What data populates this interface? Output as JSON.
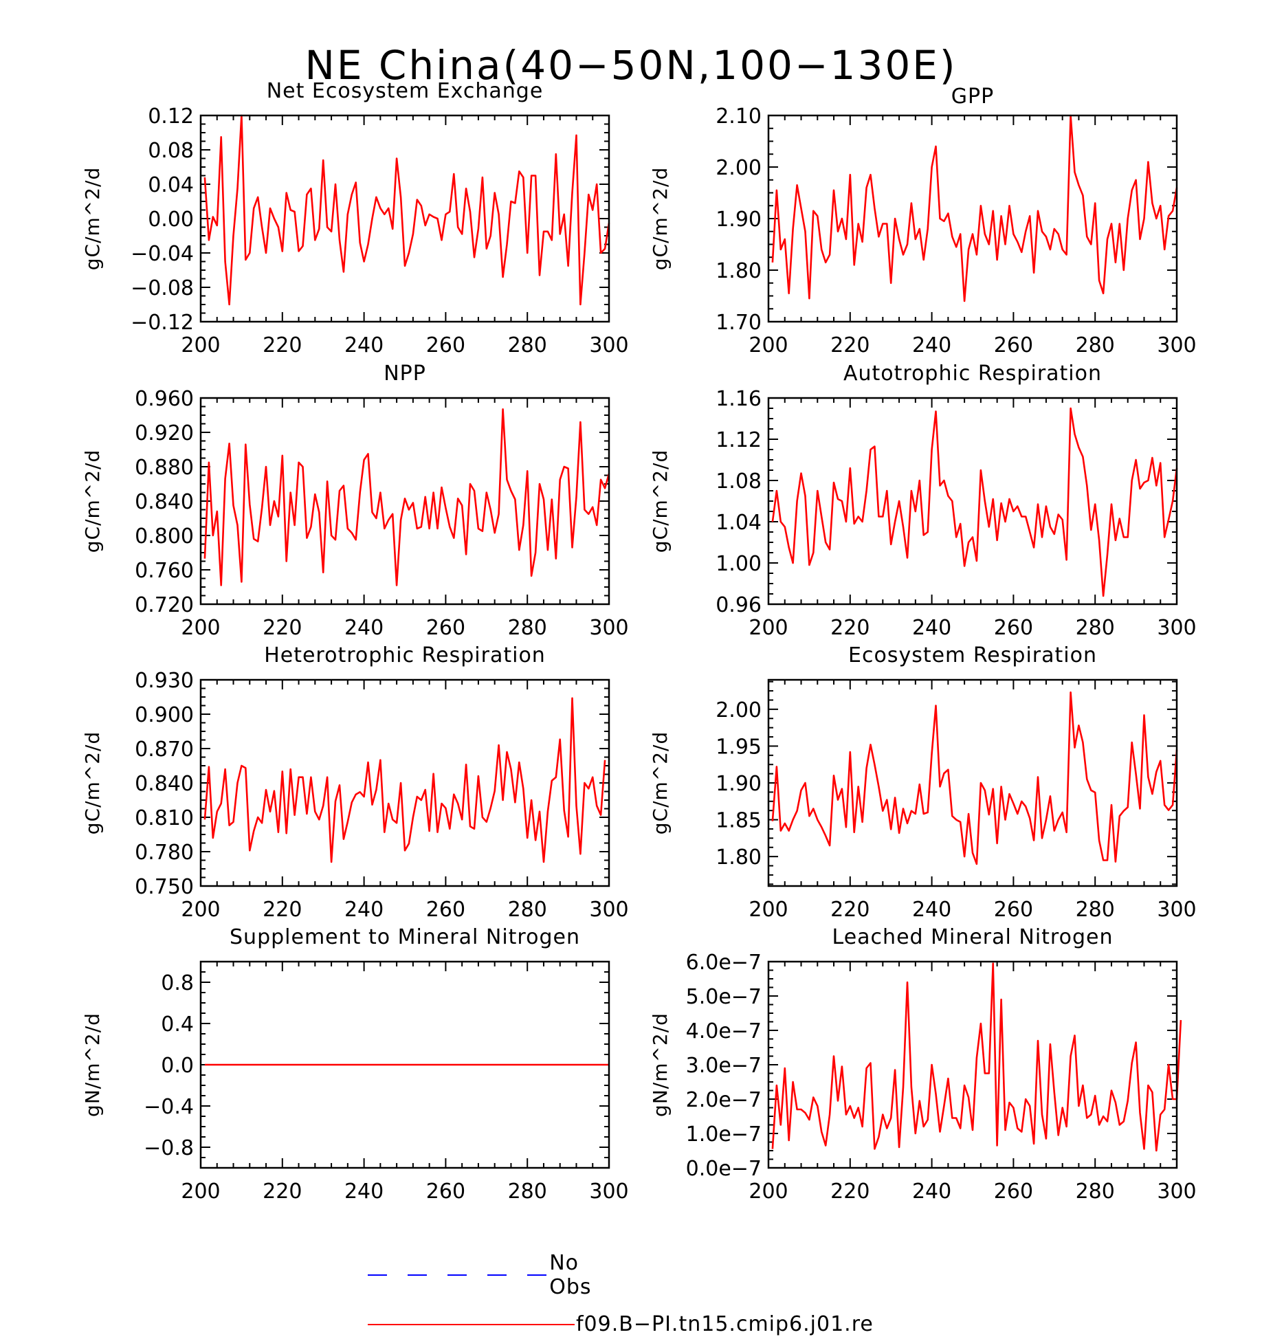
{
  "title": "NE China(40−50N,100−130E)",
  "colors": {
    "model": "#ff0000",
    "obs": "#0000ff"
  },
  "legend": [
    {
      "label": "No Obs",
      "color": "#0000ff",
      "style": "dashed"
    },
    {
      "label": "f09.B−PI.tn15.cmip6.j01.re",
      "color": "#ff0000",
      "style": "solid"
    }
  ],
  "chart_data": [
    {
      "type": "line",
      "title": "Net Ecosystem Exchange",
      "ylabel": "gC/m^2/d",
      "xlabel": "",
      "xlim": [
        200,
        300
      ],
      "xticks": [
        200,
        220,
        240,
        260,
        280,
        300
      ],
      "ylim": [
        -0.12,
        0.12
      ],
      "yticks": [
        -0.12,
        -0.08,
        -0.04,
        0.0,
        0.04,
        0.08,
        0.12
      ],
      "yticklabels": [
        "−0.12",
        "−0.08",
        "−0.04",
        "0.00",
        "0.04",
        "0.08",
        "0.12"
      ],
      "x_start": 201,
      "series": [
        {
          "name": "f09.B−PI.tn15.cmip6.j01.re",
          "values": [
            0.048,
            -0.025,
            0.002,
            -0.008,
            0.095,
            -0.05,
            -0.1,
            -0.02,
            0.035,
            0.12,
            -0.048,
            -0.04,
            0.012,
            0.025,
            -0.01,
            -0.04,
            0.012,
            0.0,
            -0.01,
            -0.038,
            0.03,
            0.01,
            0.008,
            -0.038,
            -0.032,
            0.028,
            0.035,
            -0.025,
            -0.012,
            0.068,
            -0.01,
            -0.015,
            0.04,
            -0.025,
            -0.062,
            0.005,
            0.028,
            0.042,
            -0.028,
            -0.05,
            -0.03,
            0.0,
            0.025,
            0.012,
            0.005,
            0.012,
            -0.012,
            0.07,
            0.025,
            -0.055,
            -0.04,
            -0.018,
            0.022,
            0.015,
            -0.008,
            0.005,
            0.002,
            0.0,
            -0.025,
            0.005,
            0.008,
            0.052,
            -0.01,
            -0.018,
            0.035,
            0.008,
            -0.045,
            -0.012,
            0.048,
            -0.035,
            -0.02,
            0.03,
            0.005,
            -0.068,
            -0.03,
            0.02,
            0.018,
            0.055,
            0.048,
            -0.04,
            0.05,
            0.05,
            -0.066,
            -0.015,
            -0.015,
            -0.025,
            0.075,
            -0.018,
            0.005,
            -0.055,
            0.03,
            0.097,
            -0.1,
            -0.04,
            0.028,
            0.01,
            0.04,
            -0.04,
            -0.035,
            -0.005
          ]
        }
      ]
    },
    {
      "type": "line",
      "title": "GPP",
      "ylabel": "gC/m^2/d",
      "xlabel": "",
      "xlim": [
        200,
        300
      ],
      "xticks": [
        200,
        220,
        240,
        260,
        280,
        300
      ],
      "ylim": [
        1.7,
        2.1
      ],
      "yticks": [
        1.7,
        1.8,
        1.9,
        2.0,
        2.1
      ],
      "yticklabels": [
        "1.70",
        "1.80",
        "1.90",
        "2.00",
        "2.10"
      ],
      "x_start": 201,
      "series": [
        {
          "name": "f09.B−PI.tn15.cmip6.j01.re",
          "values": [
            1.815,
            1.955,
            1.84,
            1.86,
            1.755,
            1.88,
            1.965,
            1.92,
            1.875,
            1.745,
            1.915,
            1.905,
            1.84,
            1.815,
            1.83,
            1.955,
            1.875,
            1.9,
            1.86,
            1.985,
            1.81,
            1.89,
            1.855,
            1.96,
            1.985,
            1.92,
            1.865,
            1.89,
            1.89,
            1.775,
            1.9,
            1.86,
            1.83,
            1.85,
            1.93,
            1.86,
            1.88,
            1.82,
            1.88,
            2.0,
            2.04,
            1.9,
            1.895,
            1.91,
            1.865,
            1.845,
            1.87,
            1.74,
            1.84,
            1.87,
            1.83,
            1.925,
            1.87,
            1.85,
            1.915,
            1.82,
            1.905,
            1.85,
            1.925,
            1.87,
            1.855,
            1.835,
            1.875,
            1.905,
            1.795,
            1.915,
            1.875,
            1.865,
            1.84,
            1.88,
            1.87,
            1.84,
            1.83,
            2.1,
            1.99,
            1.965,
            1.945,
            1.865,
            1.85,
            1.93,
            1.78,
            1.755,
            1.86,
            1.89,
            1.815,
            1.89,
            1.8,
            1.9,
            1.955,
            1.975,
            1.86,
            1.9,
            2.01,
            1.93,
            1.9,
            1.925,
            1.84,
            1.905,
            1.915,
            1.96
          ]
        }
      ]
    },
    {
      "type": "line",
      "title": "NPP",
      "ylabel": "gC/m^2/d",
      "xlabel": "",
      "xlim": [
        200,
        300
      ],
      "xticks": [
        200,
        220,
        240,
        260,
        280,
        300
      ],
      "ylim": [
        0.72,
        0.96
      ],
      "yticks": [
        0.72,
        0.76,
        0.8,
        0.84,
        0.88,
        0.92,
        0.96
      ],
      "yticklabels": [
        "0.720",
        "0.760",
        "0.800",
        "0.840",
        "0.880",
        "0.920",
        "0.960"
      ],
      "x_start": 201,
      "series": [
        {
          "name": "f09.B−PI.tn15.cmip6.j01.re",
          "values": [
            0.773,
            0.885,
            0.8,
            0.828,
            0.742,
            0.866,
            0.907,
            0.835,
            0.812,
            0.746,
            0.906,
            0.836,
            0.796,
            0.793,
            0.832,
            0.88,
            0.812,
            0.84,
            0.822,
            0.893,
            0.77,
            0.85,
            0.812,
            0.885,
            0.88,
            0.797,
            0.81,
            0.848,
            0.827,
            0.757,
            0.863,
            0.8,
            0.795,
            0.852,
            0.858,
            0.808,
            0.803,
            0.795,
            0.85,
            0.888,
            0.895,
            0.827,
            0.82,
            0.85,
            0.808,
            0.818,
            0.825,
            0.742,
            0.818,
            0.843,
            0.83,
            0.838,
            0.808,
            0.81,
            0.845,
            0.808,
            0.85,
            0.808,
            0.856,
            0.832,
            0.81,
            0.797,
            0.843,
            0.835,
            0.778,
            0.86,
            0.852,
            0.808,
            0.805,
            0.85,
            0.83,
            0.803,
            0.825,
            0.947,
            0.865,
            0.852,
            0.842,
            0.783,
            0.812,
            0.875,
            0.753,
            0.78,
            0.86,
            0.842,
            0.783,
            0.842,
            0.773,
            0.865,
            0.88,
            0.878,
            0.786,
            0.845,
            0.932,
            0.83,
            0.825,
            0.833,
            0.812,
            0.865,
            0.855,
            0.872
          ]
        }
      ]
    },
    {
      "type": "line",
      "title": "Autotrophic Respiration",
      "ylabel": "gC/m^2/d",
      "xlabel": "",
      "xlim": [
        200,
        300
      ],
      "xticks": [
        200,
        220,
        240,
        260,
        280,
        300
      ],
      "ylim": [
        0.96,
        1.16
      ],
      "yticks": [
        0.96,
        1.0,
        1.04,
        1.08,
        1.12,
        1.16
      ],
      "yticklabels": [
        "0.96",
        "1.00",
        "1.04",
        "1.08",
        "1.12",
        "1.16"
      ],
      "x_start": 201,
      "series": [
        {
          "name": "f09.B−PI.tn15.cmip6.j01.re",
          "values": [
            1.04,
            1.07,
            1.04,
            1.035,
            1.015,
            1.0,
            1.06,
            1.087,
            1.065,
            0.998,
            1.01,
            1.07,
            1.045,
            1.02,
            1.013,
            1.078,
            1.062,
            1.06,
            1.04,
            1.092,
            1.038,
            1.045,
            1.04,
            1.07,
            1.11,
            1.113,
            1.045,
            1.045,
            1.07,
            1.018,
            1.04,
            1.06,
            1.035,
            1.005,
            1.07,
            1.05,
            1.08,
            1.027,
            1.03,
            1.11,
            1.147,
            1.075,
            1.08,
            1.065,
            1.06,
            1.025,
            1.038,
            0.997,
            1.02,
            1.025,
            1.002,
            1.09,
            1.06,
            1.035,
            1.062,
            1.022,
            1.058,
            1.04,
            1.062,
            1.05,
            1.055,
            1.045,
            1.045,
            1.03,
            1.015,
            1.057,
            1.025,
            1.055,
            1.035,
            1.028,
            1.047,
            1.042,
            1.003,
            1.15,
            1.125,
            1.112,
            1.103,
            1.075,
            1.032,
            1.057,
            1.022,
            0.968,
            1.008,
            1.057,
            1.022,
            1.043,
            1.025,
            1.025,
            1.08,
            1.1,
            1.072,
            1.078,
            1.08,
            1.102,
            1.075,
            1.097,
            1.025,
            1.042,
            1.06,
            1.092
          ]
        }
      ]
    },
    {
      "type": "line",
      "title": "Heterotrophic Respiration",
      "ylabel": "gC/m^2/d",
      "xlabel": "",
      "xlim": [
        200,
        300
      ],
      "xticks": [
        200,
        220,
        240,
        260,
        280,
        300
      ],
      "ylim": [
        0.75,
        0.93
      ],
      "yticks": [
        0.75,
        0.78,
        0.81,
        0.84,
        0.87,
        0.9,
        0.93
      ],
      "yticklabels": [
        "0.750",
        "0.780",
        "0.810",
        "0.840",
        "0.870",
        "0.900",
        "0.930"
      ],
      "x_start": 201,
      "series": [
        {
          "name": "f09.B−PI.tn15.cmip6.j01.re",
          "values": [
            0.808,
            0.854,
            0.792,
            0.815,
            0.822,
            0.852,
            0.803,
            0.806,
            0.84,
            0.855,
            0.853,
            0.781,
            0.798,
            0.81,
            0.805,
            0.834,
            0.815,
            0.833,
            0.797,
            0.85,
            0.796,
            0.852,
            0.812,
            0.845,
            0.845,
            0.813,
            0.845,
            0.815,
            0.808,
            0.82,
            0.845,
            0.771,
            0.824,
            0.838,
            0.791,
            0.806,
            0.823,
            0.83,
            0.832,
            0.828,
            0.858,
            0.821,
            0.834,
            0.86,
            0.797,
            0.822,
            0.808,
            0.805,
            0.84,
            0.781,
            0.787,
            0.81,
            0.828,
            0.825,
            0.834,
            0.798,
            0.848,
            0.797,
            0.822,
            0.818,
            0.8,
            0.83,
            0.822,
            0.808,
            0.856,
            0.802,
            0.8,
            0.846,
            0.81,
            0.806,
            0.818,
            0.833,
            0.873,
            0.825,
            0.867,
            0.852,
            0.823,
            0.858,
            0.835,
            0.792,
            0.825,
            0.79,
            0.815,
            0.771,
            0.815,
            0.842,
            0.845,
            0.878,
            0.816,
            0.793,
            0.914,
            0.82,
            0.778,
            0.84,
            0.835,
            0.845,
            0.82,
            0.812,
            0.86
          ]
        }
      ]
    },
    {
      "type": "line",
      "title": "Ecosystem Respiration",
      "ylabel": "gC/m^2/d",
      "xlabel": "",
      "xlim": [
        200,
        300
      ],
      "xticks": [
        200,
        220,
        240,
        260,
        280,
        300
      ],
      "ylim": [
        1.76,
        2.04
      ],
      "yticks": [
        1.8,
        1.85,
        1.9,
        1.95,
        2.0
      ],
      "yticklabels": [
        "1.80",
        "1.85",
        "1.90",
        "1.95",
        "2.00"
      ],
      "x_start": 201,
      "series": [
        {
          "name": "f09.B−PI.tn15.cmip6.j01.re",
          "values": [
            1.848,
            1.922,
            1.835,
            1.845,
            1.835,
            1.85,
            1.862,
            1.89,
            1.9,
            1.855,
            1.865,
            1.85,
            1.84,
            1.828,
            1.815,
            1.91,
            1.877,
            1.892,
            1.84,
            1.942,
            1.833,
            1.895,
            1.847,
            1.92,
            1.952,
            1.925,
            1.895,
            1.862,
            1.877,
            1.837,
            1.88,
            1.832,
            1.865,
            1.845,
            1.862,
            1.858,
            1.898,
            1.858,
            1.86,
            1.94,
            2.005,
            1.895,
            1.913,
            1.918,
            1.855,
            1.85,
            1.847,
            1.8,
            1.858,
            1.805,
            1.79,
            1.9,
            1.89,
            1.857,
            1.892,
            1.818,
            1.895,
            1.85,
            1.885,
            1.872,
            1.858,
            1.875,
            1.868,
            1.852,
            1.822,
            1.908,
            1.825,
            1.85,
            1.882,
            1.835,
            1.85,
            1.86,
            1.833,
            2.023,
            1.948,
            1.978,
            1.955,
            1.905,
            1.89,
            1.887,
            1.822,
            1.795,
            1.795,
            1.87,
            1.793,
            1.855,
            1.862,
            1.867,
            1.955,
            1.912,
            1.865,
            1.992,
            1.908,
            1.885,
            1.915,
            1.93,
            1.87,
            1.863,
            1.87,
            1.945
          ]
        }
      ]
    },
    {
      "type": "line",
      "title": "Supplement to Mineral Nitrogen",
      "ylabel": "gN/m^2/d",
      "xlabel": "",
      "xlim": [
        200,
        300
      ],
      "xticks": [
        200,
        220,
        240,
        260,
        280,
        300
      ],
      "ylim": [
        -1.0,
        1.0
      ],
      "yticks": [
        -0.8,
        -0.4,
        0.0,
        0.4,
        0.8
      ],
      "yticklabels": [
        "−0.8",
        "−0.4",
        "0.0",
        "0.4",
        "0.8"
      ],
      "x_start": 201,
      "series": [
        {
          "name": "f09.B−PI.tn15.cmip6.j01.re",
          "constant": 0.0,
          "count": 100
        }
      ]
    },
    {
      "type": "line",
      "title": "Leached Mineral Nitrogen",
      "ylabel": "gN/m^2/d",
      "xlabel": "",
      "xlim": [
        200,
        300
      ],
      "xticks": [
        200,
        220,
        240,
        260,
        280,
        300
      ],
      "ylim": [
        0.0,
        6e-07
      ],
      "yticks": [
        0.0,
        1e-07,
        2e-07,
        3e-07,
        4e-07,
        5e-07,
        6e-07
      ],
      "yticklabels": [
        "0.0e−7",
        "1.0e−7",
        "2.0e−7",
        "3.0e−7",
        "4.0e−7",
        "5.0e−7",
        "6.0e−7"
      ],
      "value_unit": 1e-07,
      "x_start": 201,
      "series": [
        {
          "name": "f09.B−PI.tn15.cmip6.j01.re",
          "values": [
            0.55,
            2.4,
            1.25,
            2.9,
            0.8,
            2.5,
            1.7,
            1.7,
            1.6,
            1.4,
            2.05,
            1.8,
            1.05,
            0.65,
            1.55,
            3.25,
            1.95,
            2.95,
            1.55,
            1.8,
            1.45,
            1.75,
            1.2,
            2.9,
            3.05,
            0.55,
            0.9,
            1.55,
            1.15,
            1.45,
            2.85,
            0.6,
            2.35,
            5.4,
            2.35,
            1.0,
            1.95,
            1.2,
            1.4,
            3.0,
            2.15,
            1.05,
            1.8,
            2.6,
            1.45,
            1.45,
            1.15,
            2.4,
            2.05,
            1.1,
            3.2,
            4.2,
            2.75,
            2.75,
            5.95,
            0.65,
            4.9,
            1.1,
            1.9,
            1.75,
            1.15,
            1.05,
            2.0,
            1.8,
            0.7,
            3.7,
            1.55,
            0.85,
            3.6,
            2.2,
            0.95,
            1.75,
            1.2,
            3.25,
            3.85,
            1.8,
            2.4,
            1.45,
            1.55,
            2.1,
            1.25,
            1.5,
            1.35,
            2.25,
            1.9,
            1.25,
            1.35,
            1.95,
            3.05,
            3.65,
            1.6,
            0.55,
            2.4,
            2.2,
            0.5,
            1.55,
            1.7,
            3.0,
            2.0,
            2.0,
            4.3
          ]
        }
      ]
    }
  ]
}
